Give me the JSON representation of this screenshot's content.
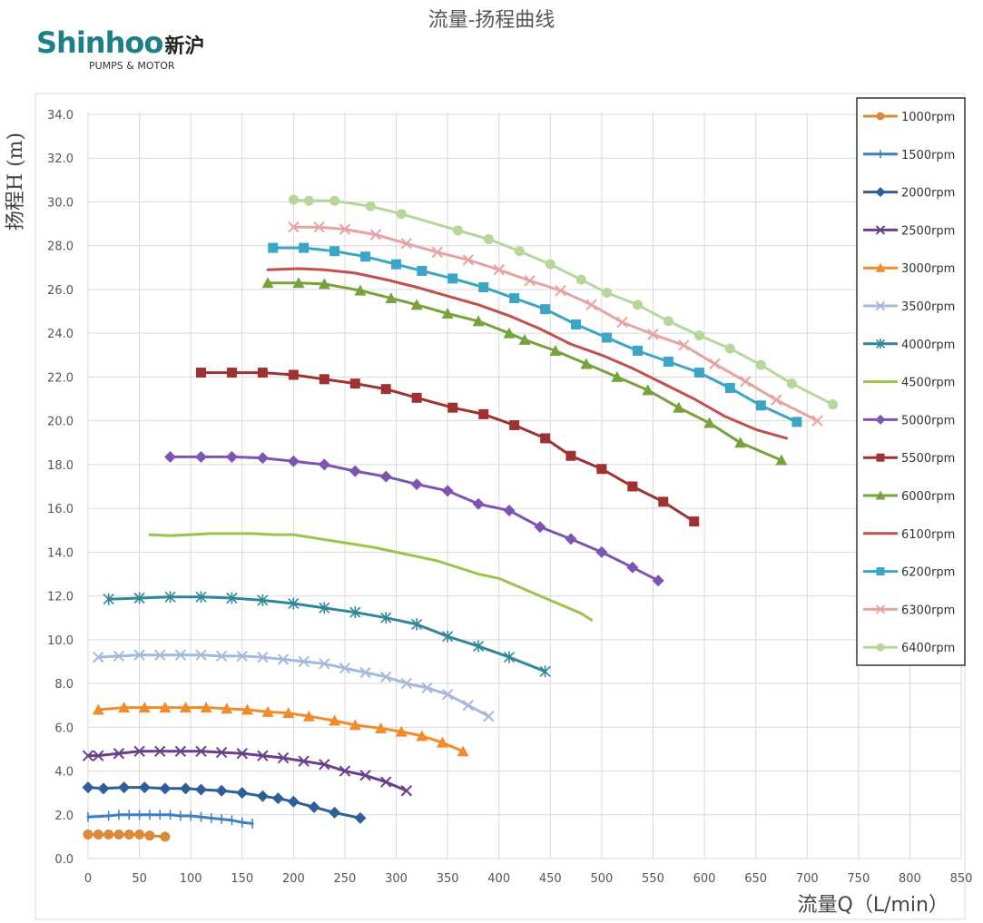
{
  "header": {
    "title": "流量-扬程曲线",
    "logo_brand": "Shinhoo",
    "logo_cn": "新沪",
    "logo_sub": "PUMPS & MOTOR"
  },
  "chart_data": {
    "type": "line",
    "title": "流量-扬程曲线",
    "xlabel": "流量Q（L/min）",
    "ylabel": "扬程H (m)",
    "xlim": [
      0,
      850
    ],
    "ylim": [
      0,
      35
    ],
    "xticks": [
      "0",
      "50",
      "100",
      "150",
      "200",
      "250",
      "300",
      "350",
      "400",
      "450",
      "500",
      "550",
      "600",
      "650",
      "700",
      "750",
      "800",
      "850"
    ],
    "yticks": [
      "0.0",
      "2.0",
      "4.0",
      "6.0",
      "8.0",
      "10.0",
      "12.0",
      "14.0",
      "16.0",
      "18.0",
      "20.0",
      "22.0",
      "24.0",
      "26.0",
      "28.0",
      "30.0",
      "32.0",
      "34.0"
    ],
    "grid": true,
    "legend_position": "right",
    "series": [
      {
        "name": "1000rpm",
        "color": "#d98b3a",
        "marker": "circle",
        "x": [
          0,
          10,
          20,
          30,
          40,
          50,
          60,
          75
        ],
        "y": [
          1.1,
          1.1,
          1.1,
          1.1,
          1.1,
          1.1,
          1.05,
          1.0
        ]
      },
      {
        "name": "1500rpm",
        "color": "#3d7fc4",
        "marker": "plus",
        "x": [
          0,
          20,
          30,
          40,
          50,
          60,
          70,
          80,
          90,
          100,
          110,
          120,
          130,
          140,
          150,
          160
        ],
        "y": [
          1.9,
          1.95,
          2.0,
          2.0,
          2.0,
          2.0,
          2.0,
          2.0,
          1.95,
          1.95,
          1.9,
          1.85,
          1.8,
          1.75,
          1.65,
          1.6
        ]
      },
      {
        "name": "2000rpm",
        "color": "#2e5f9a",
        "marker": "diamond",
        "x": [
          0,
          15,
          35,
          55,
          75,
          95,
          110,
          130,
          150,
          170,
          185,
          200,
          220,
          240,
          265
        ],
        "y": [
          3.25,
          3.2,
          3.25,
          3.25,
          3.2,
          3.2,
          3.15,
          3.1,
          3.0,
          2.85,
          2.75,
          2.6,
          2.35,
          2.1,
          1.85
        ]
      },
      {
        "name": "2500rpm",
        "color": "#6a3f87",
        "marker": "x",
        "x": [
          0,
          10,
          30,
          50,
          70,
          90,
          110,
          130,
          150,
          170,
          190,
          210,
          230,
          250,
          270,
          290,
          310
        ],
        "y": [
          4.7,
          4.7,
          4.8,
          4.9,
          4.9,
          4.9,
          4.9,
          4.85,
          4.8,
          4.7,
          4.6,
          4.45,
          4.3,
          4.0,
          3.8,
          3.5,
          3.1
        ]
      },
      {
        "name": "3000rpm",
        "color": "#f08c2c",
        "marker": "triangle",
        "x": [
          10,
          35,
          55,
          75,
          95,
          115,
          135,
          155,
          175,
          195,
          215,
          240,
          260,
          285,
          305,
          325,
          345,
          365
        ],
        "y": [
          6.8,
          6.9,
          6.9,
          6.9,
          6.9,
          6.9,
          6.85,
          6.8,
          6.7,
          6.65,
          6.5,
          6.3,
          6.1,
          5.95,
          5.8,
          5.6,
          5.3,
          4.9
        ]
      },
      {
        "name": "3500rpm",
        "color": "#a5b9dd",
        "marker": "x",
        "x": [
          10,
          30,
          50,
          70,
          90,
          110,
          130,
          150,
          170,
          190,
          210,
          230,
          250,
          270,
          290,
          310,
          330,
          350,
          370,
          390
        ],
        "y": [
          9.2,
          9.25,
          9.3,
          9.3,
          9.3,
          9.3,
          9.25,
          9.25,
          9.2,
          9.1,
          9.0,
          8.9,
          8.7,
          8.5,
          8.3,
          8.0,
          7.8,
          7.5,
          7.0,
          6.5
        ]
      },
      {
        "name": "4000rpm",
        "color": "#2f8797",
        "marker": "asterisk",
        "x": [
          20,
          50,
          80,
          110,
          140,
          170,
          200,
          230,
          260,
          290,
          320,
          350,
          380,
          410,
          445
        ],
        "y": [
          11.85,
          11.9,
          11.95,
          11.95,
          11.9,
          11.8,
          11.65,
          11.45,
          11.25,
          11.0,
          10.7,
          10.15,
          9.7,
          9.2,
          8.55
        ]
      },
      {
        "name": "4500rpm",
        "color": "#9bc34d",
        "marker": "none",
        "x": [
          60,
          80,
          100,
          120,
          140,
          160,
          180,
          200,
          220,
          240,
          260,
          280,
          300,
          320,
          340,
          360,
          380,
          400,
          420,
          440,
          460,
          480,
          490
        ],
        "y": [
          14.8,
          14.75,
          14.8,
          14.85,
          14.85,
          14.85,
          14.8,
          14.8,
          14.65,
          14.5,
          14.35,
          14.2,
          14.0,
          13.8,
          13.6,
          13.3,
          13.0,
          12.8,
          12.4,
          12.0,
          11.6,
          11.2,
          10.9
        ]
      },
      {
        "name": "5000rpm",
        "color": "#7d55b0",
        "marker": "diamond",
        "x": [
          80,
          110,
          140,
          170,
          200,
          230,
          260,
          290,
          320,
          350,
          380,
          410,
          440,
          470,
          500,
          530,
          555
        ],
        "y": [
          18.35,
          18.35,
          18.35,
          18.3,
          18.15,
          18.0,
          17.7,
          17.45,
          17.1,
          16.8,
          16.2,
          15.9,
          15.15,
          14.6,
          14.0,
          13.3,
          12.7
        ]
      },
      {
        "name": "5500rpm",
        "color": "#9e3232",
        "marker": "square",
        "x": [
          110,
          140,
          170,
          200,
          230,
          260,
          290,
          320,
          355,
          385,
          415,
          445,
          470,
          500,
          530,
          560,
          590
        ],
        "y": [
          22.2,
          22.2,
          22.2,
          22.1,
          21.9,
          21.7,
          21.45,
          21.05,
          20.6,
          20.3,
          19.8,
          19.2,
          18.4,
          17.8,
          17.0,
          16.3,
          15.4
        ]
      },
      {
        "name": "6000rpm",
        "color": "#76a33b",
        "marker": "triangle",
        "x": [
          175,
          205,
          230,
          265,
          295,
          320,
          350,
          380,
          410,
          425,
          455,
          485,
          515,
          545,
          575,
          605,
          635,
          675
        ],
        "y": [
          26.3,
          26.3,
          26.25,
          25.95,
          25.6,
          25.3,
          24.9,
          24.55,
          24.0,
          23.7,
          23.2,
          22.6,
          22.0,
          21.4,
          20.6,
          19.9,
          19.0,
          18.2
        ]
      },
      {
        "name": "6100rpm",
        "color": "#c0504d",
        "marker": "none",
        "x": [
          175,
          205,
          230,
          260,
          290,
          320,
          350,
          380,
          410,
          440,
          470,
          500,
          530,
          560,
          590,
          620,
          650,
          680
        ],
        "y": [
          26.9,
          26.95,
          26.9,
          26.75,
          26.45,
          26.1,
          25.7,
          25.3,
          24.8,
          24.2,
          23.5,
          23.0,
          22.4,
          21.7,
          21.0,
          20.2,
          19.6,
          19.2
        ]
      },
      {
        "name": "6200rpm",
        "color": "#3ba5c5",
        "marker": "square",
        "x": [
          180,
          210,
          240,
          270,
          300,
          325,
          355,
          385,
          415,
          445,
          475,
          505,
          535,
          565,
          595,
          625,
          655,
          690
        ],
        "y": [
          27.9,
          27.9,
          27.75,
          27.5,
          27.15,
          26.85,
          26.5,
          26.1,
          25.6,
          25.1,
          24.4,
          23.8,
          23.2,
          22.7,
          22.2,
          21.5,
          20.7,
          19.95
        ]
      },
      {
        "name": "6300rpm",
        "color": "#e6a3a1",
        "marker": "x",
        "x": [
          200,
          225,
          250,
          280,
          310,
          340,
          370,
          400,
          430,
          460,
          490,
          520,
          550,
          580,
          610,
          640,
          670,
          710
        ],
        "y": [
          28.85,
          28.85,
          28.75,
          28.5,
          28.1,
          27.7,
          27.35,
          26.9,
          26.4,
          25.95,
          25.3,
          24.5,
          23.95,
          23.45,
          22.6,
          21.8,
          20.95,
          20.0
        ]
      },
      {
        "name": "6400rpm",
        "color": "#b5d89a",
        "marker": "circle",
        "x": [
          200,
          215,
          240,
          275,
          305,
          360,
          390,
          420,
          450,
          480,
          505,
          535,
          565,
          595,
          625,
          655,
          685,
          725
        ],
        "y": [
          30.1,
          30.05,
          30.05,
          29.8,
          29.45,
          28.7,
          28.3,
          27.75,
          27.15,
          26.45,
          25.85,
          25.3,
          24.55,
          23.9,
          23.3,
          22.55,
          21.7,
          20.75
        ]
      }
    ]
  }
}
